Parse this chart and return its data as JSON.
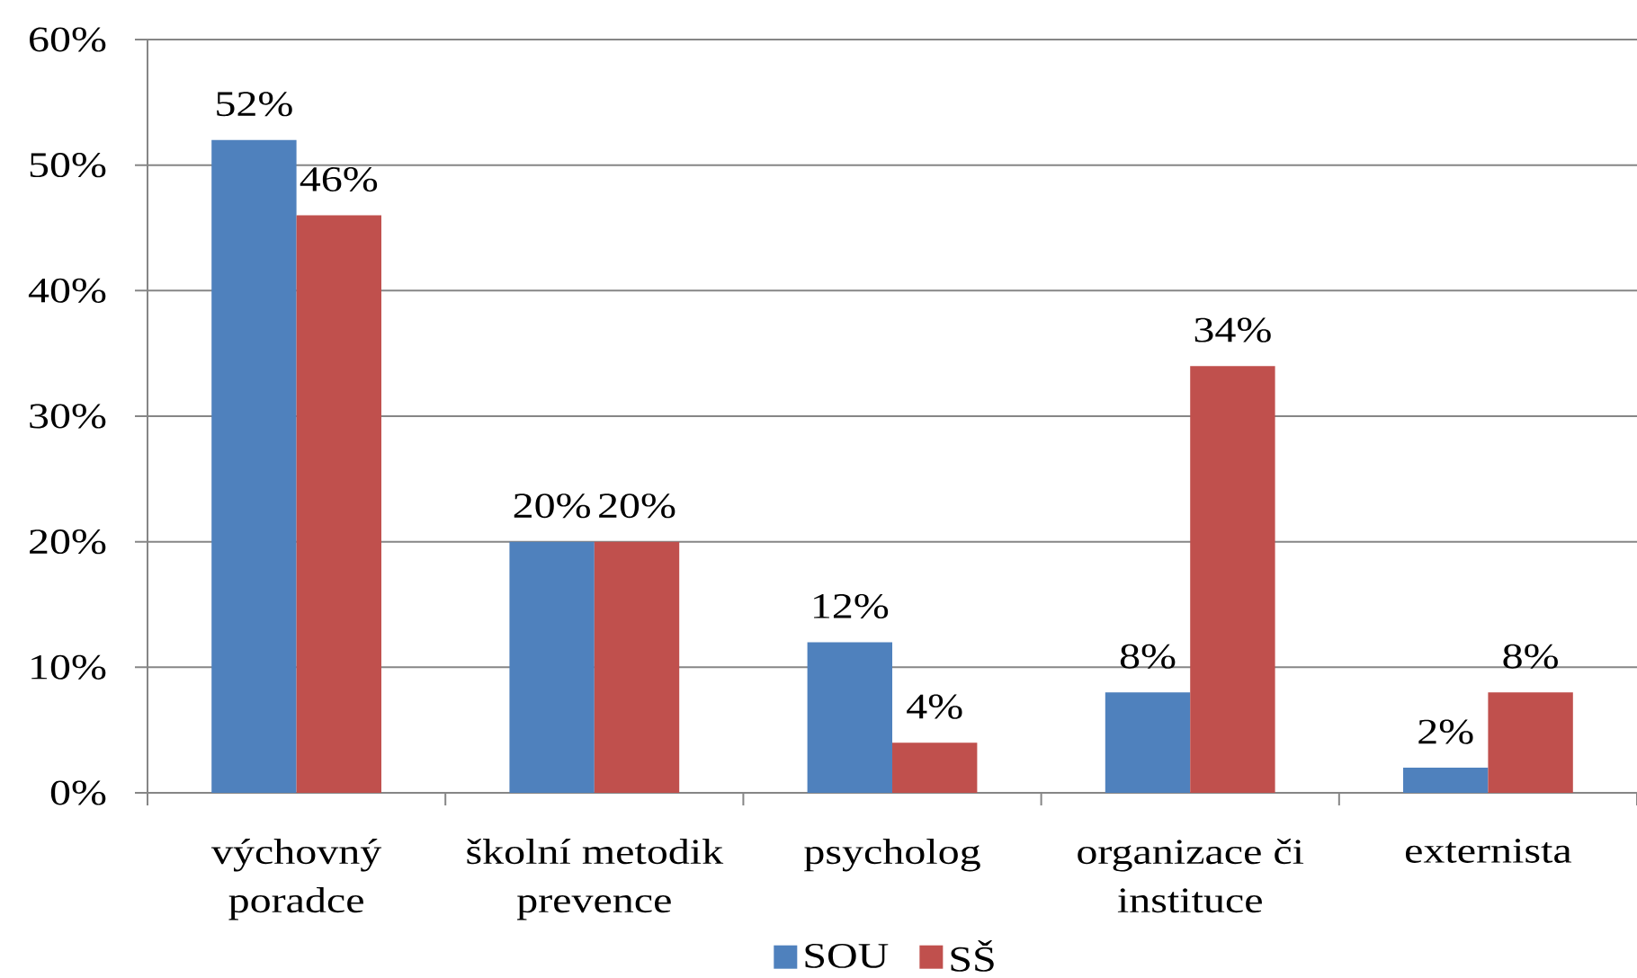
{
  "chart_data": {
    "type": "bar",
    "categories": [
      "výchovný poradce",
      "školní metodik prevence",
      "psycholog",
      "organizace či instituce",
      "externista"
    ],
    "series": [
      {
        "name": "SOU",
        "color": "#4f81bd",
        "values": [
          52,
          20,
          12,
          8,
          2
        ],
        "value_labels": [
          "52%",
          "20%",
          "12%",
          "8%",
          "2%"
        ]
      },
      {
        "name": "SŠ",
        "color": "#c0504d",
        "values": [
          46,
          20,
          4,
          34,
          8
        ],
        "value_labels": [
          "46%",
          "20%",
          "4%",
          "34%",
          "8%"
        ]
      }
    ],
    "ylim": [
      0,
      60
    ],
    "yticks": [
      {
        "value": 0,
        "label": "0%"
      },
      {
        "value": 10,
        "label": "10%"
      },
      {
        "value": 20,
        "label": "20%"
      },
      {
        "value": 30,
        "label": "30%"
      },
      {
        "value": 40,
        "label": "40%"
      },
      {
        "value": 50,
        "label": "50%"
      },
      {
        "value": 60,
        "label": "60%"
      }
    ],
    "grid": "y",
    "legend": "bottom"
  }
}
